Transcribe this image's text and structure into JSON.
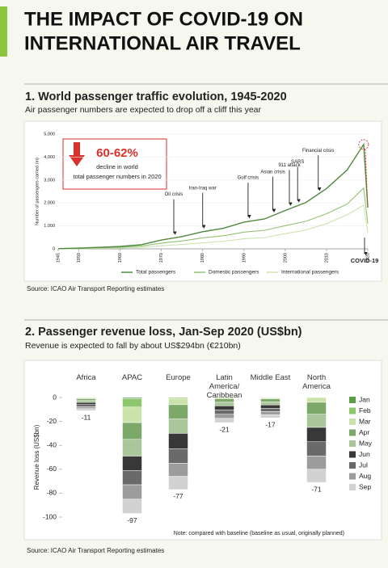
{
  "header": {
    "title": [
      "THE IMPACT OF COVID-19 ON",
      "INTERNATIONAL AIR TRAVEL"
    ]
  },
  "chart_data": [
    {
      "type": "line",
      "title": "1. World passenger traffic evolution, 1945-2020",
      "subtitle": "Air passenger numbers are expected to drop off a cliff this year",
      "source": "Source: ICAO Air Transport Reporting estimates",
      "y_label": "Number of passengers carried (m)",
      "x": [
        1945,
        1950,
        1955,
        1960,
        1965,
        1970,
        1975,
        1980,
        1985,
        1990,
        1995,
        2000,
        2005,
        2010,
        2015,
        2019,
        2020
      ],
      "series": [
        {
          "name": "Total passengers",
          "color": "#4f8a3e",
          "values": [
            9,
            31,
            68,
            106,
            177,
            383,
            534,
            748,
            896,
            1165,
            1304,
            1672,
            2022,
            2628,
            3441,
            4550,
            1800
          ]
        },
        {
          "name": "Domestic passengers",
          "color": "#93c172",
          "values": [
            6,
            20,
            45,
            70,
            115,
            250,
            345,
            480,
            570,
            730,
            810,
            1010,
            1200,
            1530,
            1950,
            2650,
            1100
          ]
        },
        {
          "name": "International passengers",
          "color": "#cde3b4",
          "values": [
            3,
            11,
            23,
            36,
            62,
            133,
            189,
            268,
            326,
            435,
            494,
            662,
            822,
            1098,
            1491,
            1900,
            700
          ]
        }
      ],
      "xlim": [
        1945,
        2020
      ],
      "xticks": [
        1945,
        1950,
        1960,
        1970,
        1980,
        1990,
        2000,
        2010,
        2020
      ],
      "ylim": [
        0,
        5000
      ],
      "yticks": [
        0,
        {
          "value": 1000,
          "label": "1,000"
        },
        {
          "value": 2000,
          "label": "2,000"
        },
        {
          "value": 3000,
          "label": "3,000"
        },
        {
          "value": 4000,
          "label": "4,000"
        },
        {
          "value": 5000,
          "label": "5,000"
        }
      ],
      "annotations": [
        {
          "label": "Oil crisis",
          "x": 1973
        },
        {
          "label": "Iran-Iraq war",
          "x": 1980
        },
        {
          "label": "Gulf crisis",
          "x": 1991
        },
        {
          "label": "Asian crisis",
          "x": 1997
        },
        {
          "label": "911 attack",
          "x": 2001
        },
        {
          "label": "SARS",
          "x": 2003
        },
        {
          "label": "Financial crisis",
          "x": 2008
        }
      ],
      "end_label": "COVID-19",
      "callout": {
        "value_label": "60-62%",
        "text": [
          "decline in world",
          "total passenger numbers in 2020"
        ]
      }
    },
    {
      "type": "stacked-bar",
      "title": "2. Passenger revenue loss, Jan-Sep 2020 (US$bn)",
      "subtitle": "Revenue is expected to fall by about US$294bn (€210bn)",
      "source": "Source: ICAO Air Transport Reporting estimates",
      "note": "Note: compared with baseline (baseline as usual, originally planned)",
      "y_label": "Revenue loss (US$bn)",
      "categories": [
        "Africa",
        "APAC",
        "Europe",
        "Latin America/\nCaribbean",
        "Middle East",
        "North\nAmerica"
      ],
      "series": [
        {
          "name": "Jan",
          "color": "#5a9e48",
          "values": [
            0,
            -1,
            0,
            0,
            0,
            0
          ]
        },
        {
          "name": "Feb",
          "color": "#8dc76b",
          "values": [
            -0.2,
            -7,
            -1,
            0,
            -0.2,
            0
          ]
        },
        {
          "name": "Mar",
          "color": "#cbe3aa",
          "values": [
            -0.8,
            -13,
            -5,
            -1,
            -1,
            -4
          ]
        },
        {
          "name": "Apr",
          "color": "#7ca96a",
          "values": [
            -1.5,
            -14,
            -12,
            -3,
            -2.4,
            -10
          ]
        },
        {
          "name": "May",
          "color": "#a9c79b",
          "values": [
            -1.6,
            -14,
            -12,
            -3,
            -2.6,
            -11
          ]
        },
        {
          "name": "Jun",
          "color": "#383838",
          "values": [
            -1.8,
            -12,
            -13,
            -3.5,
            -2.8,
            -12
          ]
        },
        {
          "name": "Jul",
          "color": "#6a6a6a",
          "values": [
            -1.8,
            -12,
            -12,
            -3.5,
            -2.8,
            -12
          ]
        },
        {
          "name": "Aug",
          "color": "#9c9c9c",
          "values": [
            -1.7,
            -12,
            -11,
            -3.5,
            -2.7,
            -11
          ]
        },
        {
          "name": "Sep",
          "color": "#d2d2d2",
          "values": [
            -1.6,
            -12,
            -11,
            -3.5,
            -2.5,
            -11
          ]
        }
      ],
      "total_labels": [
        -11,
        -97,
        -77,
        -21,
        -17,
        -71
      ],
      "ylim": [
        -100,
        0
      ],
      "yticks": [
        0,
        -20,
        -40,
        -60,
        -80,
        -100
      ],
      "legend": "right"
    }
  ]
}
